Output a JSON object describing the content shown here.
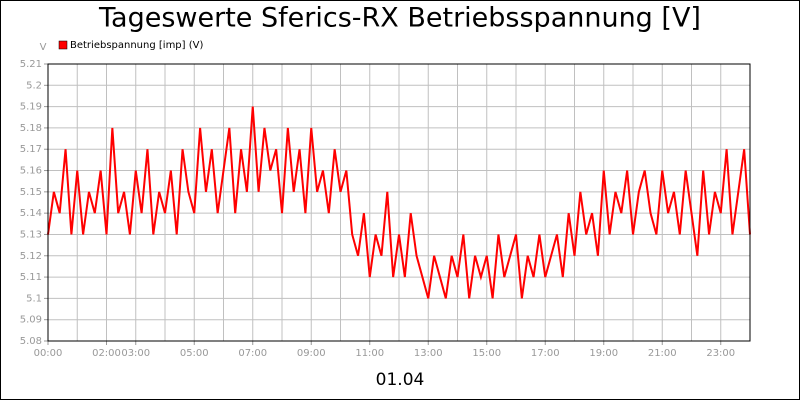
{
  "chart_data": {
    "type": "line",
    "title": "Tageswerte Sferics-RX Betriebsspannung [V]",
    "y_label": "V",
    "x_label": "01.04",
    "grid": true,
    "legend": "top-left",
    "xlim": [
      0,
      24
    ],
    "ylim": [
      5.08,
      5.21
    ],
    "yticks": [
      5.08,
      5.09,
      5.1,
      5.11,
      5.12,
      5.13,
      5.14,
      5.15,
      5.16,
      5.17,
      5.18,
      5.19,
      5.2,
      5.21
    ],
    "xticks": [
      {
        "value": 0,
        "label": "00:00"
      },
      {
        "value": 2,
        "label": "02:00"
      },
      {
        "value": 3,
        "label": "03:00"
      },
      {
        "value": 5,
        "label": "05:00"
      },
      {
        "value": 7,
        "label": "07:00"
      },
      {
        "value": 9,
        "label": "09:00"
      },
      {
        "value": 11,
        "label": "11:00"
      },
      {
        "value": 13,
        "label": "13:00"
      },
      {
        "value": 15,
        "label": "15:00"
      },
      {
        "value": 17,
        "label": "17:00"
      },
      {
        "value": 19,
        "label": "19:00"
      },
      {
        "value": 21,
        "label": "21:00"
      },
      {
        "value": 23,
        "label": "23:00"
      }
    ],
    "x": [
      0,
      0.2,
      0.4,
      0.6,
      0.8,
      1,
      1.2,
      1.4,
      1.6,
      1.8,
      2,
      2.2,
      2.4,
      2.6,
      2.8,
      3,
      3.2,
      3.4,
      3.6,
      3.8,
      4,
      4.2,
      4.4,
      4.6,
      4.8,
      5,
      5.2,
      5.4,
      5.6,
      5.8,
      6,
      6.2,
      6.4,
      6.6,
      6.8,
      7,
      7.2,
      7.4,
      7.6,
      7.8,
      8,
      8.2,
      8.4,
      8.6,
      8.8,
      9,
      9.2,
      9.4,
      9.6,
      9.8,
      10,
      10.2,
      10.4,
      10.6,
      10.8,
      11,
      11.2,
      11.4,
      11.6,
      11.8,
      12,
      12.2,
      12.4,
      12.6,
      12.8,
      13,
      13.2,
      13.4,
      13.6,
      13.8,
      14,
      14.2,
      14.4,
      14.6,
      14.8,
      15,
      15.2,
      15.4,
      15.6,
      15.8,
      16,
      16.2,
      16.4,
      16.6,
      16.8,
      17,
      17.2,
      17.4,
      17.6,
      17.8,
      18,
      18.2,
      18.4,
      18.6,
      18.8,
      19,
      19.2,
      19.4,
      19.6,
      19.8,
      20,
      20.2,
      20.4,
      20.6,
      20.8,
      21,
      21.2,
      21.4,
      21.6,
      21.8,
      22,
      22.2,
      22.4,
      22.6,
      22.8,
      23,
      23.2,
      23.4,
      23.6,
      23.8,
      24
    ],
    "series": [
      {
        "name": "Betriebspannung [imp] (V)",
        "color": "#ff0000",
        "values": [
          5.13,
          5.15,
          5.14,
          5.17,
          5.13,
          5.16,
          5.13,
          5.15,
          5.14,
          5.16,
          5.13,
          5.18,
          5.14,
          5.15,
          5.13,
          5.16,
          5.14,
          5.17,
          5.13,
          5.15,
          5.14,
          5.16,
          5.13,
          5.17,
          5.15,
          5.14,
          5.18,
          5.15,
          5.17,
          5.14,
          5.16,
          5.18,
          5.14,
          5.17,
          5.15,
          5.19,
          5.15,
          5.18,
          5.16,
          5.17,
          5.14,
          5.18,
          5.15,
          5.17,
          5.14,
          5.18,
          5.15,
          5.16,
          5.14,
          5.17,
          5.15,
          5.16,
          5.13,
          5.12,
          5.14,
          5.11,
          5.13,
          5.12,
          5.15,
          5.11,
          5.13,
          5.11,
          5.14,
          5.12,
          5.11,
          5.1,
          5.12,
          5.11,
          5.1,
          5.12,
          5.11,
          5.13,
          5.1,
          5.12,
          5.11,
          5.12,
          5.1,
          5.13,
          5.11,
          5.12,
          5.13,
          5.1,
          5.12,
          5.11,
          5.13,
          5.11,
          5.12,
          5.13,
          5.11,
          5.14,
          5.12,
          5.15,
          5.13,
          5.14,
          5.12,
          5.16,
          5.13,
          5.15,
          5.14,
          5.16,
          5.13,
          5.15,
          5.16,
          5.14,
          5.13,
          5.16,
          5.14,
          5.15,
          5.13,
          5.16,
          5.14,
          5.12,
          5.16,
          5.13,
          5.15,
          5.14,
          5.17,
          5.13,
          5.15,
          5.17,
          5.13
        ]
      }
    ]
  }
}
